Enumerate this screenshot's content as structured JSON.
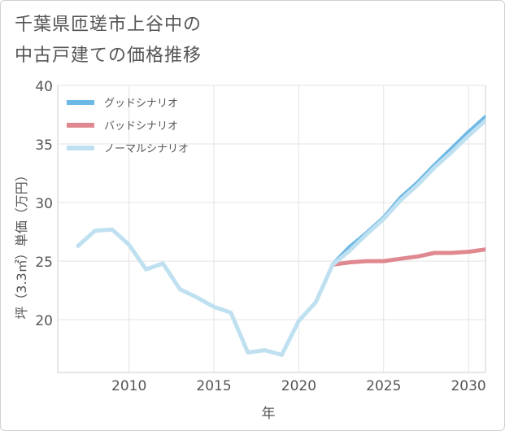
{
  "title_lines": [
    "千葉県匝瑳市上谷中の",
    "中古戸建ての価格推移"
  ],
  "chart_data": {
    "type": "line",
    "title": "千葉県匝瑳市上谷中の中古戸建ての価格推移",
    "xlabel": "年",
    "ylabel": "坪（3.3㎡）単価（万円）",
    "xlim": [
      2005.8,
      2031
    ],
    "ylim": [
      15.5,
      40
    ],
    "xticks": [
      2010,
      2015,
      2020,
      2025,
      2030
    ],
    "yticks": [
      20,
      25,
      30,
      35,
      40
    ],
    "grid": true,
    "legend_position": "top-left",
    "series": [
      {
        "name": "グッドシナリオ",
        "color": "#6cb8e6",
        "x": [
          2022,
          2023,
          2024,
          2025,
          2026,
          2027,
          2028,
          2029,
          2030,
          2031
        ],
        "y": [
          24.7,
          26.2,
          27.4,
          28.7,
          30.4,
          31.7,
          33.2,
          34.6,
          36.0,
          37.3
        ]
      },
      {
        "name": "バッドシナリオ",
        "color": "#e08890",
        "x": [
          2022,
          2023,
          2024,
          2025,
          2026,
          2027,
          2028,
          2029,
          2030,
          2031
        ],
        "y": [
          24.7,
          24.9,
          25.0,
          25.0,
          25.2,
          25.4,
          25.7,
          25.7,
          25.8,
          26.0
        ]
      },
      {
        "name": "ノーマルシナリオ",
        "color": "#bfe0f0",
        "x": [
          2007,
          2008,
          2009,
          2010,
          2011,
          2012,
          2013,
          2014,
          2015,
          2016,
          2017,
          2018,
          2019,
          2020,
          2021,
          2022,
          2023,
          2024,
          2025,
          2026,
          2027,
          2028,
          2029,
          2030,
          2031
        ],
        "y": [
          26.3,
          27.6,
          27.7,
          26.4,
          24.3,
          24.8,
          22.6,
          21.9,
          21.1,
          20.6,
          17.2,
          17.4,
          17.0,
          19.9,
          21.5,
          24.7,
          25.9,
          27.3,
          28.6,
          30.2,
          31.5,
          33.0,
          34.3,
          35.7,
          37.0
        ]
      }
    ]
  }
}
